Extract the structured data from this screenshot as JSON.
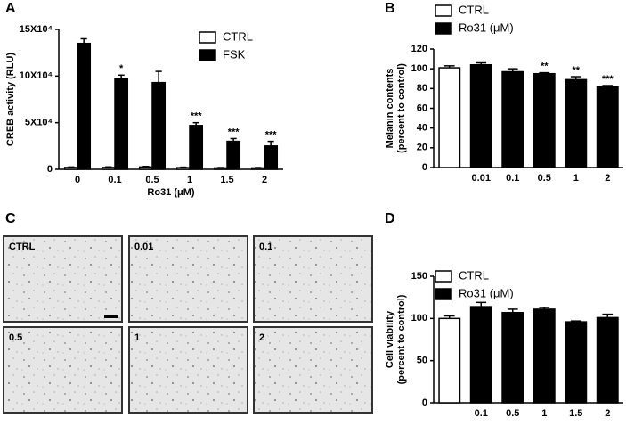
{
  "chart_data": [
    {
      "type": "bar",
      "panel_label": "A",
      "ylabel": [
        "CREB activity (RLU)"
      ],
      "xlabel": "Ro31 (μM)",
      "categories": [
        "0",
        "0.1",
        "0.5",
        "1",
        "1.5",
        "2"
      ],
      "series": [
        {
          "name": "CTRL",
          "color": "#ffffff",
          "values": [
            2000,
            2000,
            2500,
            1800,
            1500,
            1500
          ],
          "errors": [
            500,
            600,
            600,
            500,
            400,
            400
          ]
        },
        {
          "name": "FSK",
          "color": "#000000",
          "values": [
            135000,
            97000,
            93000,
            47000,
            30000,
            25000
          ],
          "errors": [
            5000,
            4000,
            12000,
            3000,
            3000,
            5000
          ],
          "significance": [
            null,
            "*",
            null,
            "***",
            "***",
            "***"
          ]
        }
      ],
      "ylim": [
        0,
        150000
      ],
      "yticks": [
        0,
        {
          "value": 50000,
          "label": "5X10⁴"
        },
        {
          "value": 100000,
          "label": "10X10⁴"
        },
        {
          "value": 150000,
          "label": "15X10⁴"
        }
      ]
    },
    {
      "type": "bar",
      "panel_label": "B",
      "ylabel": [
        "Melanin contents",
        "(percent to control)"
      ],
      "categories": [
        null,
        "0.01",
        "0.1",
        "0.5",
        "1",
        "2"
      ],
      "series": [
        {
          "name": "CTRL",
          "color": "#ffffff",
          "values": [
            101,
            null,
            null,
            null,
            null,
            null
          ],
          "errors": [
            2,
            null,
            null,
            null,
            null,
            null
          ]
        },
        {
          "name": "Ro31 (μM)",
          "color": "#000000",
          "values": [
            null,
            104,
            97,
            95,
            89,
            82
          ],
          "errors": [
            null,
            2,
            3,
            1,
            3,
            1
          ],
          "significance": [
            null,
            null,
            null,
            "**",
            "**",
            "***"
          ]
        }
      ],
      "ylim": [
        0,
        120
      ],
      "yticks": [
        0,
        20,
        40,
        60,
        80,
        100,
        120
      ]
    },
    {
      "type": "bar",
      "panel_label": "D",
      "ylabel": [
        "Cell viability",
        "(percent to control)"
      ],
      "categories": [
        null,
        "0.1",
        "0.5",
        "1",
        "1.5",
        "2"
      ],
      "series": [
        {
          "name": "CTRL",
          "color": "#ffffff",
          "values": [
            100,
            null,
            null,
            null,
            null,
            null
          ],
          "errors": [
            3,
            null,
            null,
            null,
            null,
            null
          ]
        },
        {
          "name": "Ro31 (μM)",
          "color": "#000000",
          "values": [
            null,
            114,
            107,
            111,
            96,
            101
          ],
          "errors": [
            null,
            5,
            4,
            2,
            1,
            4
          ]
        }
      ],
      "ylim": [
        0,
        150
      ],
      "yticks": [
        0,
        50,
        100,
        150
      ]
    }
  ],
  "image_panel": {
    "panel_label": "C",
    "images": [
      "CTRL",
      "0.01",
      "0.1",
      "0.5",
      "1",
      "2"
    ]
  }
}
